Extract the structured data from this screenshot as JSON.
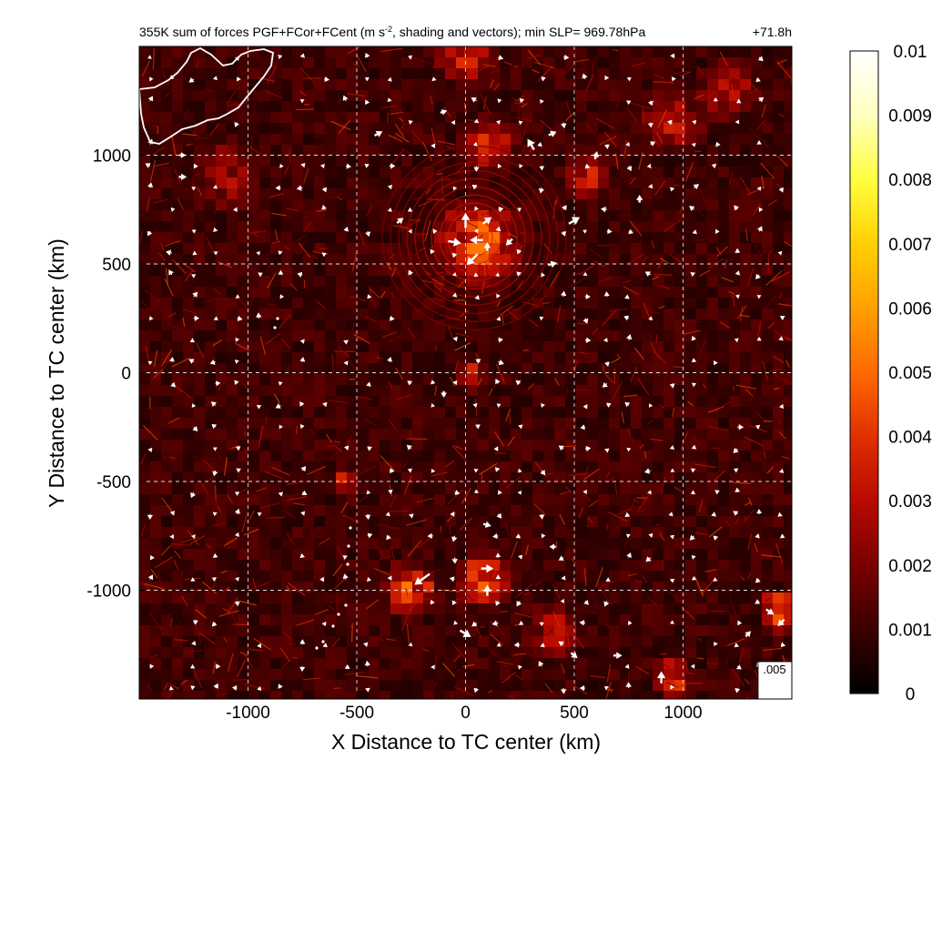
{
  "chart_data": {
    "type": "heatmap",
    "title_left": "355K sum of forces PGF+FCor+FCent (m s",
    "title_sup": "-2",
    "title_rest": ", shading and vectors); min SLP= 969.78hPa",
    "title_right": "+71.8h",
    "xlabel": "X Distance to TC center (km)",
    "ylabel": "Y Distance to TC center (km)",
    "xlim": [
      -1500,
      1500
    ],
    "ylim": [
      -1500,
      1500
    ],
    "xticks": [
      -1000,
      -500,
      0,
      500,
      1000
    ],
    "xtick_labels": [
      "-1000",
      "-500",
      "0",
      "500",
      "1000"
    ],
    "yticks": [
      1000,
      500,
      0,
      -500,
      -1000
    ],
    "ytick_labels": [
      "1000",
      "500",
      "0",
      "-500",
      "-1000"
    ],
    "grid": true,
    "colorbar": {
      "min": 0,
      "max": 0.01,
      "ticks": [
        0.01,
        0.009,
        0.008,
        0.007,
        0.006,
        0.005,
        0.004,
        0.003,
        0.002,
        0.001,
        0
      ],
      "tick_labels": [
        "0.01",
        "0.009",
        "0.008",
        "0.007",
        "0.006",
        "0.005",
        "0.004",
        "0.003",
        "0.002",
        "0.001",
        "0"
      ],
      "colormap": [
        "#000000",
        "#3a0000",
        "#7a0000",
        "#b80a00",
        "#e03000",
        "#ff6a00",
        "#ffa000",
        "#ffd000",
        "#ffff40",
        "#ffffc0",
        "#ffffff"
      ]
    },
    "reference_vector": {
      "label": ".005",
      "magnitude": 0.005
    },
    "hotspots": [
      {
        "x": 60,
        "y": 600,
        "r": 230,
        "v": 0.006
      },
      {
        "x": 110,
        "y": 1050,
        "r": 150,
        "v": 0.004
      },
      {
        "x": 550,
        "y": 900,
        "r": 120,
        "v": 0.0035
      },
      {
        "x": 950,
        "y": 1150,
        "r": 160,
        "v": 0.003
      },
      {
        "x": 30,
        "y": -10,
        "r": 80,
        "v": 0.004
      },
      {
        "x": -550,
        "y": -500,
        "r": 80,
        "v": 0.003
      },
      {
        "x": -250,
        "y": -1000,
        "r": 150,
        "v": 0.005
      },
      {
        "x": 80,
        "y": -950,
        "r": 150,
        "v": 0.005
      },
      {
        "x": 1450,
        "y": -1100,
        "r": 110,
        "v": 0.008
      },
      {
        "x": 950,
        "y": -1400,
        "r": 110,
        "v": 0.005
      },
      {
        "x": 400,
        "y": -1200,
        "r": 150,
        "v": 0.003
      },
      {
        "x": -1100,
        "y": 900,
        "r": 180,
        "v": 0.003
      },
      {
        "x": 1200,
        "y": 1300,
        "r": 160,
        "v": 0.0035
      },
      {
        "x": 0,
        "y": 1450,
        "r": 150,
        "v": 0.004
      }
    ],
    "vectors": [
      {
        "x": 0,
        "y": 700,
        "u": 0,
        "v": 0.0035
      },
      {
        "x": -50,
        "y": 600,
        "u": 0.003,
        "v": -0.0005
      },
      {
        "x": 50,
        "y": 610,
        "u": -0.003,
        "v": 0
      },
      {
        "x": 30,
        "y": 520,
        "u": -0.0025,
        "v": -0.0025
      },
      {
        "x": 100,
        "y": 700,
        "u": 0.002,
        "v": 0.0015
      },
      {
        "x": 100,
        "y": 580,
        "u": 0,
        "v": 0.002
      },
      {
        "x": 200,
        "y": 600,
        "u": -0.0015,
        "v": -0.0015
      },
      {
        "x": 500,
        "y": 700,
        "u": 0.0025,
        "v": 0.0015
      },
      {
        "x": 400,
        "y": 500,
        "u": 0.002,
        "v": 0.0005
      },
      {
        "x": 300,
        "y": 1050,
        "u": -0.0015,
        "v": 0.0025
      },
      {
        "x": 400,
        "y": 1100,
        "u": 0.0018,
        "v": 0.0008
      },
      {
        "x": 600,
        "y": 1000,
        "u": 0.0005,
        "v": 0.0018
      },
      {
        "x": 800,
        "y": 800,
        "u": 0,
        "v": 0.0018
      },
      {
        "x": -400,
        "y": 1100,
        "u": 0.0018,
        "v": 0.001
      },
      {
        "x": -100,
        "y": 1200,
        "u": 0.0015,
        "v": 0.0005
      },
      {
        "x": -300,
        "y": 700,
        "u": 0.0015,
        "v": 0.0012
      },
      {
        "x": 100,
        "y": -900,
        "u": 0.0028,
        "v": 0
      },
      {
        "x": 100,
        "y": -1000,
        "u": 0,
        "v": 0.0025
      },
      {
        "x": -200,
        "y": -950,
        "u": -0.0035,
        "v": -0.0025
      },
      {
        "x": 0,
        "y": -1200,
        "u": 0.0025,
        "v": -0.0015
      },
      {
        "x": -100,
        "y": -100,
        "u": 0,
        "v": -0.0015
      },
      {
        "x": 100,
        "y": -700,
        "u": 0.0018,
        "v": -0.0005
      },
      {
        "x": 400,
        "y": -800,
        "u": -0.0015,
        "v": 0
      },
      {
        "x": 500,
        "y": -1300,
        "u": 0.0015,
        "v": -0.0012
      },
      {
        "x": 700,
        "y": -1300,
        "u": 0.002,
        "v": 0
      },
      {
        "x": 900,
        "y": -1400,
        "u": 0,
        "v": 0.0028
      },
      {
        "x": 1400,
        "y": -1100,
        "u": 0.0018,
        "v": -0.0012
      },
      {
        "x": 1450,
        "y": -1150,
        "u": -0.0015,
        "v": -0.0015
      },
      {
        "x": 1300,
        "y": -1200,
        "u": 0.0012,
        "v": 0.0012
      },
      {
        "x": -1300,
        "y": 900,
        "u": 0.0018,
        "v": 0
      },
      {
        "x": -1300,
        "y": 1000,
        "u": 0.0015,
        "v": 0
      }
    ]
  }
}
